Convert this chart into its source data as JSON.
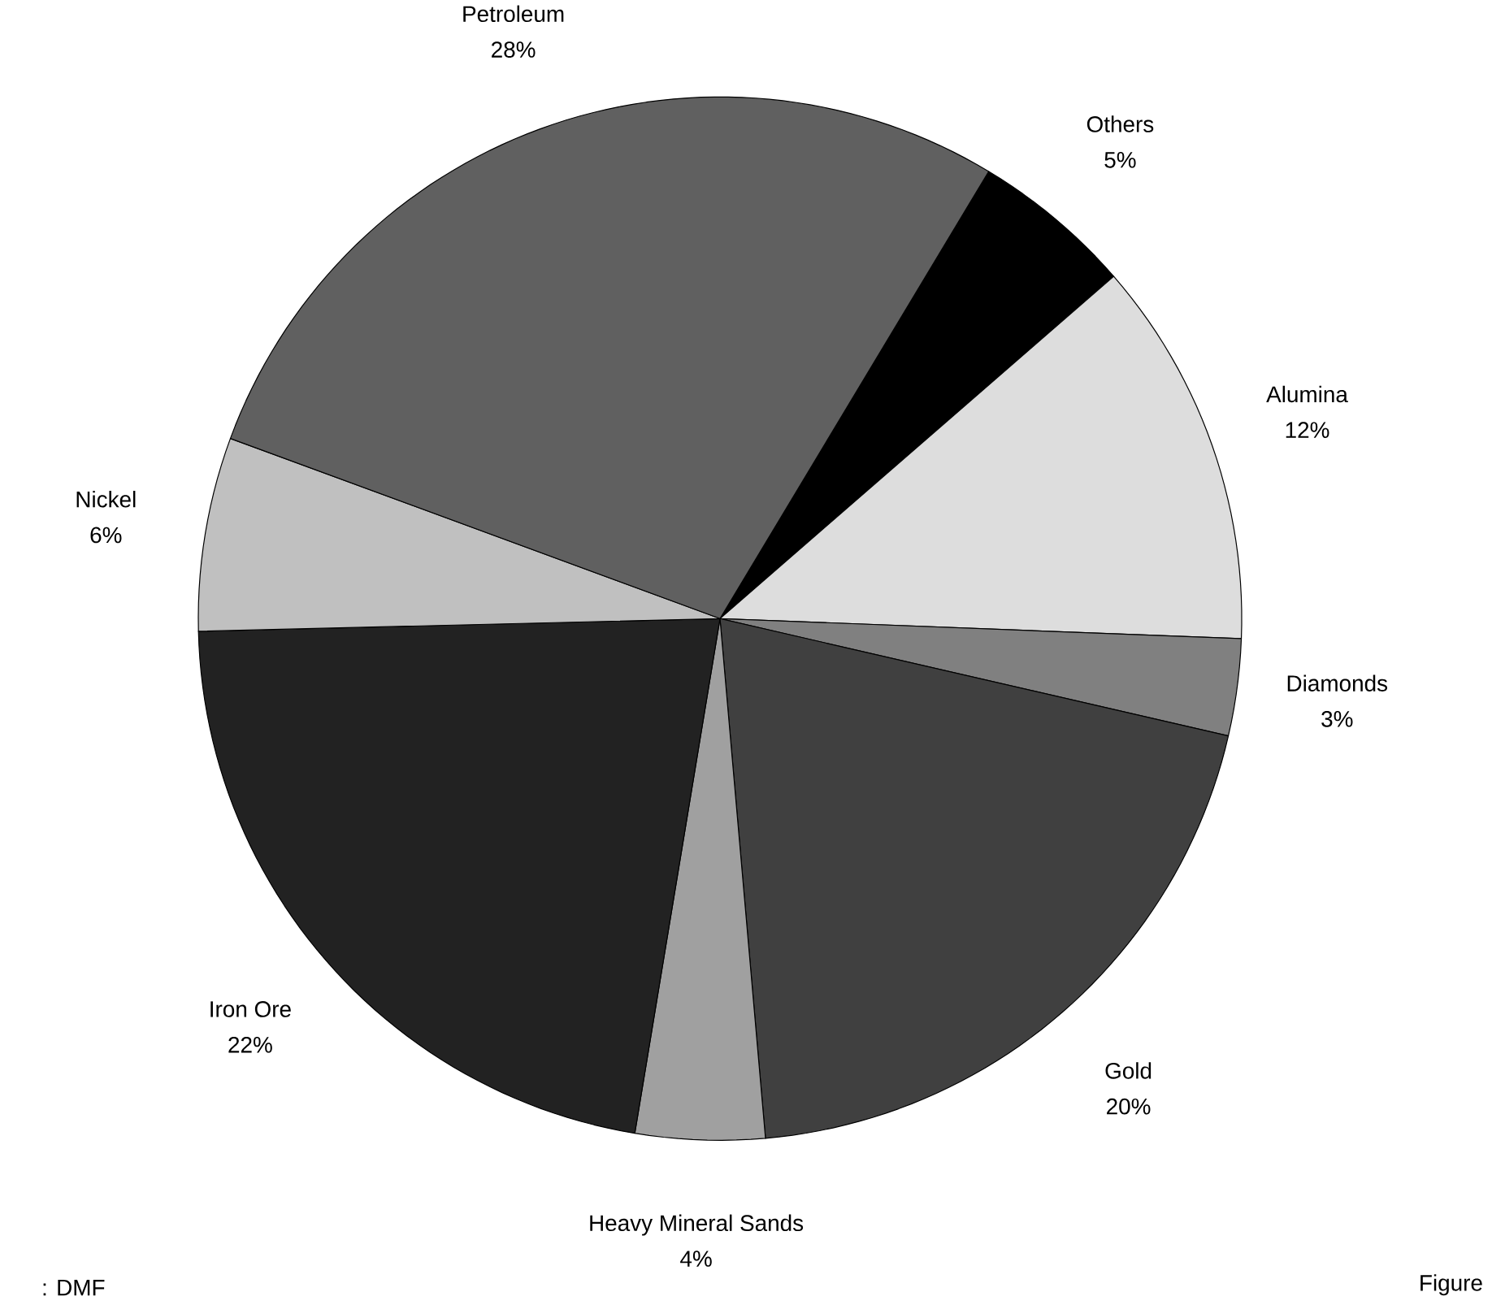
{
  "chart_data": {
    "type": "pie",
    "categories": [
      "Others",
      "Alumina",
      "Diamonds",
      "Gold",
      "Heavy Mineral Sands",
      "Iron Ore",
      "Nickel",
      "Petroleum"
    ],
    "values": [
      5,
      12,
      3,
      20,
      4,
      22,
      6,
      28
    ],
    "value_labels": [
      "5%",
      "12%",
      "3%",
      "20%",
      "4%",
      "22%",
      "6%",
      "28%"
    ],
    "colors": [
      "#000000",
      "#dddddd",
      "#808080",
      "#404040",
      "#a0a0a0",
      "#222222",
      "#c0c0c0",
      "#606060"
    ],
    "annotations": [
      ": DMF",
      "Figure"
    ]
  }
}
